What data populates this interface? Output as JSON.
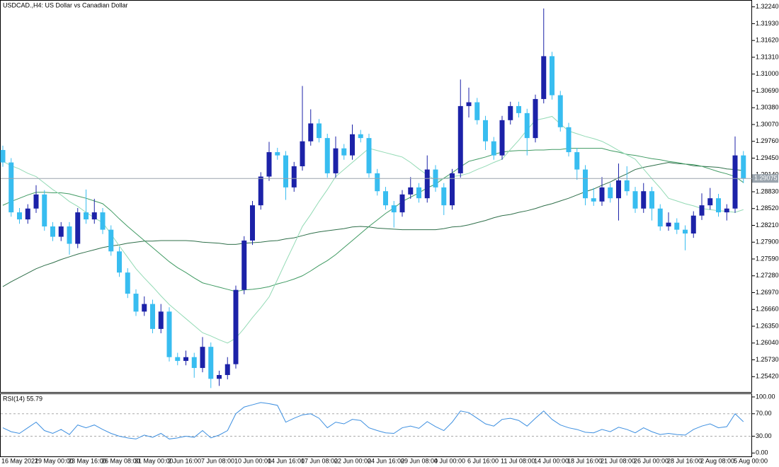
{
  "chart_data": [
    {
      "type": "candlestick",
      "title": "USDCAD.,H4: US Dollar vs Canadian Dollar",
      "categories": [
        "16 May 2022",
        null,
        null,
        null,
        "19 May 00:00",
        null,
        null,
        null,
        "23 May 16:00",
        null,
        null,
        null,
        "26 May 08:00",
        null,
        null,
        null,
        "31 May 00:00",
        null,
        null,
        null,
        "2 Jun 16:00",
        null,
        null,
        null,
        "7 Jun 08:00",
        null,
        null,
        null,
        "10 Jun 00:00",
        null,
        null,
        null,
        "14 Jun 16:00",
        null,
        null,
        null,
        "17 Jun 08:00",
        null,
        null,
        null,
        "22 Jun 00:00",
        null,
        null,
        null,
        "24 Jun 16:00",
        null,
        null,
        null,
        "29 Jun 08:00",
        null,
        null,
        null,
        "4 Jul 00:00",
        null,
        null,
        null,
        "6 Jul 16:00",
        null,
        null,
        null,
        "11 Jul 08:00",
        null,
        null,
        null,
        "14 Jul 00:00",
        null,
        null,
        null,
        "18 Jul 16:00",
        null,
        null,
        null,
        "21 Jul 08:00",
        null,
        null,
        null,
        "26 Jul 00:00",
        null,
        null,
        null,
        "28 Jul 16:00",
        null,
        null,
        null,
        "2 Aug 08:00",
        null,
        null,
        null,
        "5 Aug 00:00",
        null
      ],
      "open": [
        1.296,
        1.2937,
        1.2845,
        1.2832,
        1.2852,
        1.2878,
        1.2819,
        1.28,
        1.2819,
        1.2787,
        1.2845,
        1.2832,
        1.2845,
        1.2813,
        1.2773,
        1.2734,
        1.2695,
        1.2662,
        1.2676,
        1.263,
        1.2662,
        1.2578,
        1.2571,
        1.2578,
        1.2558,
        1.2597,
        1.2538,
        1.2545,
        1.2565,
        1.2702,
        1.2793,
        1.2858,
        1.2911,
        1.2956,
        1.295,
        1.2891,
        1.293,
        1.2976,
        1.3009,
        1.2982,
        1.2917,
        1.2963,
        1.295,
        1.2989,
        1.2982,
        1.2917,
        1.2884,
        1.2858,
        1.2845,
        1.2878,
        1.2891,
        1.2871,
        1.2924,
        1.2891,
        1.2858,
        1.2917,
        1.3041,
        1.3048,
        1.3015,
        1.2976,
        1.295,
        1.3015,
        1.3041,
        1.3028,
        1.2982,
        1.3054,
        1.3133,
        1.3061,
        1.3002,
        1.2956,
        1.2924,
        1.2871,
        1.2865,
        1.2891,
        1.2871,
        1.2904,
        1.2884,
        1.2852,
        1.2884,
        1.2852,
        1.2819,
        1.2826,
        1.2813,
        1.2806,
        1.2839,
        1.2858,
        1.2871,
        1.2845,
        1.2852,
        1.295
      ],
      "high": [
        1.2968,
        1.2945,
        1.2853,
        1.286,
        1.2895,
        1.2886,
        1.2827,
        1.2827,
        1.2827,
        1.2853,
        1.2887,
        1.287,
        1.2853,
        1.2821,
        1.2781,
        1.2742,
        1.2703,
        1.269,
        1.2684,
        1.2676,
        1.267,
        1.2586,
        1.259,
        1.2586,
        1.2615,
        1.2605,
        1.2553,
        1.2578,
        1.271,
        1.2801,
        1.2866,
        1.2919,
        1.2975,
        1.2964,
        1.2958,
        1.2938,
        1.3078,
        1.3035,
        1.3017,
        1.299,
        1.2985,
        1.2971,
        1.3007,
        1.2997,
        1.299,
        1.2925,
        1.2892,
        1.2866,
        1.2886,
        1.291,
        1.2899,
        1.295,
        1.2932,
        1.2899,
        1.2925,
        1.309,
        1.3075,
        1.3056,
        1.3023,
        1.2984,
        1.3023,
        1.3049,
        1.3049,
        1.3036,
        1.3062,
        1.3221,
        1.3141,
        1.3069,
        1.301,
        1.2964,
        1.2932,
        1.289,
        1.291,
        1.2899,
        1.2935,
        1.293,
        1.2892,
        1.2899,
        1.2892,
        1.286,
        1.2845,
        1.2834,
        1.2821,
        1.2847,
        1.288,
        1.289,
        1.2879,
        1.286,
        1.2985,
        1.2958
      ],
      "low": [
        1.2929,
        1.2837,
        1.2824,
        1.2824,
        1.2844,
        1.2811,
        1.2792,
        1.2792,
        1.2767,
        1.2779,
        1.2824,
        1.2824,
        1.2805,
        1.2765,
        1.2726,
        1.2687,
        1.2654,
        1.2654,
        1.2622,
        1.2622,
        1.257,
        1.2563,
        1.2563,
        1.254,
        1.255,
        1.2521,
        1.2525,
        1.2537,
        1.2557,
        1.2694,
        1.2785,
        1.285,
        1.2903,
        1.2942,
        1.2868,
        1.2883,
        1.2922,
        1.2968,
        1.2974,
        1.2909,
        1.2909,
        1.2942,
        1.2942,
        1.2974,
        1.2909,
        1.2876,
        1.285,
        1.2817,
        1.2837,
        1.287,
        1.2863,
        1.2863,
        1.2883,
        1.284,
        1.285,
        1.2909,
        1.302,
        1.3007,
        1.296,
        1.2942,
        1.2942,
        1.3007,
        1.302,
        1.295,
        1.2974,
        1.3046,
        1.3053,
        1.2994,
        1.2948,
        1.2905,
        1.2858,
        1.2857,
        1.2857,
        1.2863,
        1.283,
        1.2876,
        1.2844,
        1.2844,
        1.283,
        1.2811,
        1.2811,
        1.2805,
        1.2775,
        1.2798,
        1.2831,
        1.285,
        1.2837,
        1.283,
        1.2844,
        1.2899
      ],
      "close": [
        1.2937,
        1.2845,
        1.2832,
        1.2852,
        1.2878,
        1.2819,
        1.28,
        1.2819,
        1.2787,
        1.2845,
        1.2832,
        1.2845,
        1.2813,
        1.2773,
        1.2734,
        1.2695,
        1.2662,
        1.2676,
        1.263,
        1.2662,
        1.2578,
        1.2571,
        1.2578,
        1.2558,
        1.2597,
        1.2538,
        1.2545,
        1.2565,
        1.2702,
        1.2793,
        1.2858,
        1.2911,
        1.2956,
        1.295,
        1.2891,
        1.293,
        1.2976,
        1.3009,
        1.2982,
        1.2917,
        1.2963,
        1.295,
        1.2989,
        1.2982,
        1.2917,
        1.2884,
        1.2858,
        1.2845,
        1.2878,
        1.2891,
        1.2871,
        1.2924,
        1.2891,
        1.2858,
        1.2917,
        1.3041,
        1.3048,
        1.3015,
        1.2976,
        1.295,
        1.3015,
        1.3041,
        1.3028,
        1.2982,
        1.3054,
        1.3133,
        1.3061,
        1.3002,
        1.2956,
        1.2924,
        1.2871,
        1.2865,
        1.2891,
        1.2871,
        1.2904,
        1.2884,
        1.2852,
        1.2884,
        1.2852,
        1.2819,
        1.2826,
        1.2813,
        1.2806,
        1.2839,
        1.2858,
        1.2871,
        1.2845,
        1.2852,
        1.295,
        1.29075
      ],
      "up_color": "#1c22a8",
      "down_color": "#38bdf0",
      "price_line_color": "#9aa4ad",
      "overlays": [
        {
          "color": "#2f6f4a",
          "values": [
            1.2708,
            1.2717,
            1.2725,
            1.2733,
            1.2741,
            1.2747,
            1.2752,
            1.2758,
            1.2763,
            1.2768,
            1.2772,
            1.2776,
            1.278,
            1.2783,
            1.2785,
            1.2788,
            1.279,
            1.2792,
            1.2792,
            1.2793,
            1.2793,
            1.2793,
            1.2793,
            1.2792,
            1.279,
            1.2789,
            1.2788,
            1.2786,
            1.2786,
            1.2788,
            1.2789,
            1.279,
            1.2792,
            1.2793,
            1.2796,
            1.2798,
            1.2802,
            1.2806,
            1.2809,
            1.2811,
            1.2813,
            1.2815,
            1.2818,
            1.2819,
            1.2818,
            1.2816,
            1.2815,
            1.2814,
            1.2813,
            1.2813,
            1.2813,
            1.2813,
            1.2813,
            1.2815,
            1.2818,
            1.2819,
            1.2822,
            1.2826,
            1.283,
            1.2835,
            1.2839,
            1.2841,
            1.2845,
            1.2848,
            1.2852,
            1.2857,
            1.2861,
            1.2866,
            1.2871,
            1.2877,
            1.2883,
            1.2888,
            1.2895,
            1.2901,
            1.2909,
            1.2916,
            1.2924,
            1.2928,
            1.2931,
            1.2934,
            1.2937,
            1.2935,
            1.2934,
            1.2931,
            1.293,
            1.2929,
            1.2928,
            1.2925,
            1.2924,
            1.2922
          ]
        },
        {
          "color": "#3f9a62",
          "values": [
            1.2858,
            1.2865,
            1.2871,
            1.2877,
            1.2882,
            1.2882,
            1.2881,
            1.2881,
            1.2879,
            1.2875,
            1.2871,
            1.2866,
            1.2861,
            1.2848,
            1.2833,
            1.2819,
            1.2806,
            1.2793,
            1.278,
            1.2767,
            1.2754,
            1.2743,
            1.2734,
            1.2724,
            1.2715,
            1.2711,
            1.2707,
            1.2703,
            1.2699,
            1.2702,
            1.2703,
            1.2705,
            1.2708,
            1.2713,
            1.2717,
            1.2722,
            1.2728,
            1.2737,
            1.2747,
            1.2756,
            1.2767,
            1.278,
            1.2793,
            1.2806,
            1.2819,
            1.2831,
            1.2843,
            1.2853,
            1.2865,
            1.2873,
            1.2881,
            1.289,
            1.2897,
            1.2908,
            1.2918,
            1.2929,
            1.2939,
            1.2943,
            1.2947,
            1.2952,
            1.2956,
            1.2958,
            1.2959,
            1.2959,
            1.296,
            1.296,
            1.2961,
            1.2961,
            1.2963,
            1.2963,
            1.2963,
            1.2963,
            1.2963,
            1.2959,
            1.2956,
            1.2952,
            1.295,
            1.2947,
            1.2944,
            1.2942,
            1.2939,
            1.2937,
            1.2934,
            1.2933,
            1.293,
            1.2925,
            1.292,
            1.2916,
            1.2911,
            1.29
          ]
        },
        {
          "color": "#93dab5",
          "values": [
            1.2939,
            1.2931,
            1.2925,
            1.2917,
            1.2911,
            1.2899,
            1.2887,
            1.2877,
            1.2865,
            1.2856,
            1.2845,
            1.2835,
            1.2826,
            1.2805,
            1.2783,
            1.2762,
            1.2741,
            1.2724,
            1.2708,
            1.2691,
            1.2675,
            1.2662,
            1.2649,
            1.2636,
            1.2623,
            1.2617,
            1.261,
            1.2604,
            1.2613,
            1.2631,
            1.2651,
            1.2669,
            1.2689,
            1.2721,
            1.2754,
            1.2786,
            1.2819,
            1.2841,
            1.2865,
            1.2887,
            1.2911,
            1.2924,
            1.2937,
            1.295,
            1.2963,
            1.2959,
            1.2955,
            1.2951,
            1.2947,
            1.2937,
            1.2925,
            1.2914,
            1.2904,
            1.2907,
            1.2911,
            1.2913,
            1.2917,
            1.2924,
            1.293,
            1.2937,
            1.2943,
            1.2961,
            1.2978,
            1.2997,
            1.3015,
            1.3018,
            1.3022,
            1.3008,
            1.2995,
            1.299,
            1.2985,
            1.2981,
            1.2976,
            1.2968,
            1.2959,
            1.2951,
            1.2943,
            1.2925,
            1.2907,
            1.289,
            1.2871,
            1.2866,
            1.2861,
            1.2857,
            1.2852,
            1.285,
            1.2848,
            1.2847,
            1.2845,
            1.285
          ]
        }
      ],
      "ylim": [
        1.2515,
        1.3234
      ],
      "yticks": [
        {
          "value": 1.3224,
          "label": "1.32240"
        },
        {
          "value": 1.3193,
          "label": "1.31930"
        },
        {
          "value": 1.3162,
          "label": "1.31620"
        },
        {
          "value": 1.3131,
          "label": "1.31310"
        },
        {
          "value": 1.31,
          "label": "1.31000"
        },
        {
          "value": 1.3069,
          "label": "1.30690"
        },
        {
          "value": 1.3038,
          "label": "1.30380"
        },
        {
          "value": 1.3007,
          "label": "1.30070"
        },
        {
          "value": 1.2976,
          "label": "1.29760"
        },
        {
          "value": 1.2945,
          "label": "1.29450"
        },
        {
          "value": 1.2914,
          "label": "1.29140"
        },
        {
          "value": 1.2883,
          "label": "1.28830"
        },
        {
          "value": 1.2852,
          "label": "1.28520"
        },
        {
          "value": 1.2821,
          "label": "1.28210"
        },
        {
          "value": 1.279,
          "label": "1.27900"
        },
        {
          "value": 1.2759,
          "label": "1.27590"
        },
        {
          "value": 1.2728,
          "label": "1.27280"
        },
        {
          "value": 1.2697,
          "label": "1.26970"
        },
        {
          "value": 1.2666,
          "label": "1.26660"
        },
        {
          "value": 1.2635,
          "label": "1.26350"
        },
        {
          "value": 1.2604,
          "label": "1.26040"
        },
        {
          "value": 1.2573,
          "label": "1.25730"
        },
        {
          "value": 1.2542,
          "label": "1.25420"
        }
      ]
    },
    {
      "type": "line",
      "title": "RSI(14) 55.79",
      "color": "#3d8fe0",
      "values": [
        45,
        38,
        35,
        45,
        55,
        40,
        35,
        42,
        33,
        50,
        45,
        50,
        42,
        35,
        30,
        27,
        25,
        32,
        28,
        35,
        25,
        27,
        30,
        28,
        40,
        27,
        32,
        40,
        70,
        82,
        86,
        90,
        88,
        85,
        55,
        62,
        68,
        70,
        62,
        45,
        55,
        52,
        60,
        58,
        45,
        40,
        36,
        35,
        45,
        48,
        44,
        56,
        47,
        40,
        55,
        75,
        72,
        62,
        52,
        48,
        60,
        62,
        58,
        48,
        62,
        75,
        60,
        50,
        45,
        42,
        37,
        36,
        42,
        38,
        46,
        42,
        36,
        45,
        38,
        33,
        35,
        33,
        32,
        42,
        48,
        52,
        45,
        47,
        70,
        55.79
      ],
      "levels": [
        70,
        30
      ],
      "ylim": [
        -6,
        105
      ],
      "yticks": [
        {
          "value": 100,
          "label": "100.00"
        },
        {
          "value": 70,
          "label": "70.00"
        },
        {
          "value": 30,
          "label": "30.00"
        },
        {
          "value": 0,
          "label": "0.00"
        }
      ]
    }
  ]
}
